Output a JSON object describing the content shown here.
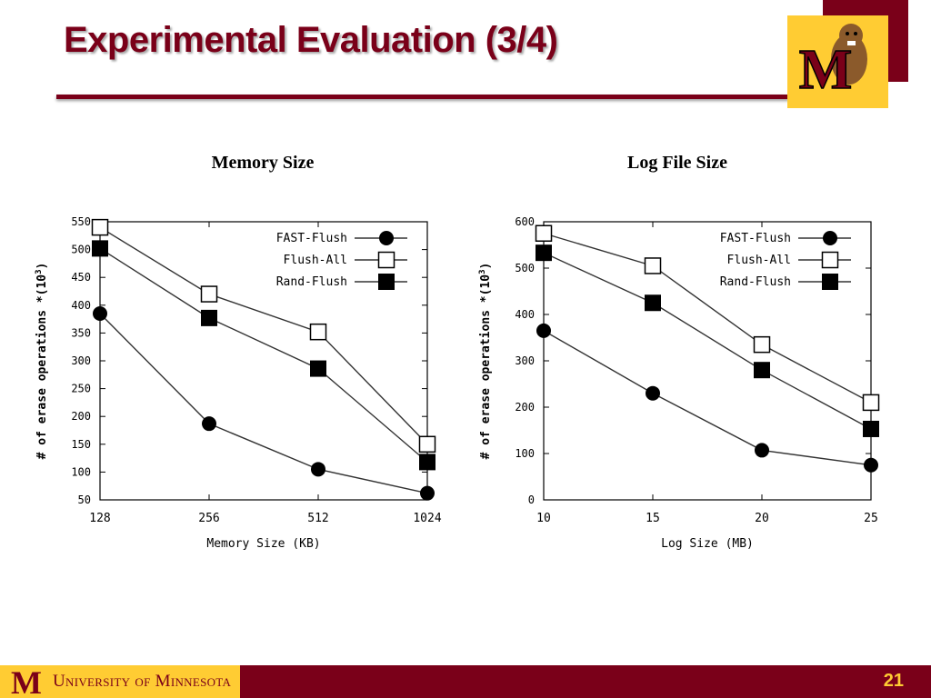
{
  "slide": {
    "title": "Experimental Evaluation (3/4)",
    "page_number": "21"
  },
  "footer": {
    "university": "University of Minnesota"
  },
  "logo": {
    "text": "M"
  },
  "colors": {
    "maroon": "#7a0019",
    "gold": "#ffcc33"
  },
  "chart_data": [
    {
      "type": "line",
      "caption": "Memory Size",
      "xlabel": "Memory Size (KB)",
      "ylabel": "# of erase operations *(10",
      "ylabel_exp": "3",
      "ylabel_tail": ")",
      "x": [
        "128",
        "256",
        "512",
        "1024"
      ],
      "ylim": [
        50,
        550
      ],
      "yticks": [
        50,
        100,
        150,
        200,
        250,
        300,
        350,
        400,
        450,
        500,
        550
      ],
      "series": [
        {
          "name": "FAST-Flush",
          "marker": "filled-circle",
          "values": [
            385,
            187,
            105,
            62
          ]
        },
        {
          "name": "Flush-All",
          "marker": "open-square",
          "values": [
            540,
            420,
            352,
            150
          ]
        },
        {
          "name": "Rand-Flush",
          "marker": "filled-square",
          "values": [
            502,
            377,
            286,
            118
          ]
        }
      ],
      "legend_position": "top-right"
    },
    {
      "type": "line",
      "caption": "Log File Size",
      "xlabel": "Log Size (MB)",
      "ylabel": "# of erase operations *(10",
      "ylabel_exp": "3",
      "ylabel_tail": ")",
      "x": [
        "10",
        "15",
        "20",
        "25"
      ],
      "ylim": [
        0,
        600
      ],
      "yticks": [
        0,
        100,
        200,
        300,
        400,
        500,
        600
      ],
      "series": [
        {
          "name": "FAST-Flush",
          "marker": "filled-circle",
          "values": [
            365,
            230,
            107,
            75
          ]
        },
        {
          "name": "Flush-All",
          "marker": "open-square",
          "values": [
            575,
            505,
            335,
            210
          ]
        },
        {
          "name": "Rand-Flush",
          "marker": "filled-square",
          "values": [
            533,
            425,
            280,
            153
          ]
        }
      ],
      "legend_position": "top-right"
    }
  ]
}
